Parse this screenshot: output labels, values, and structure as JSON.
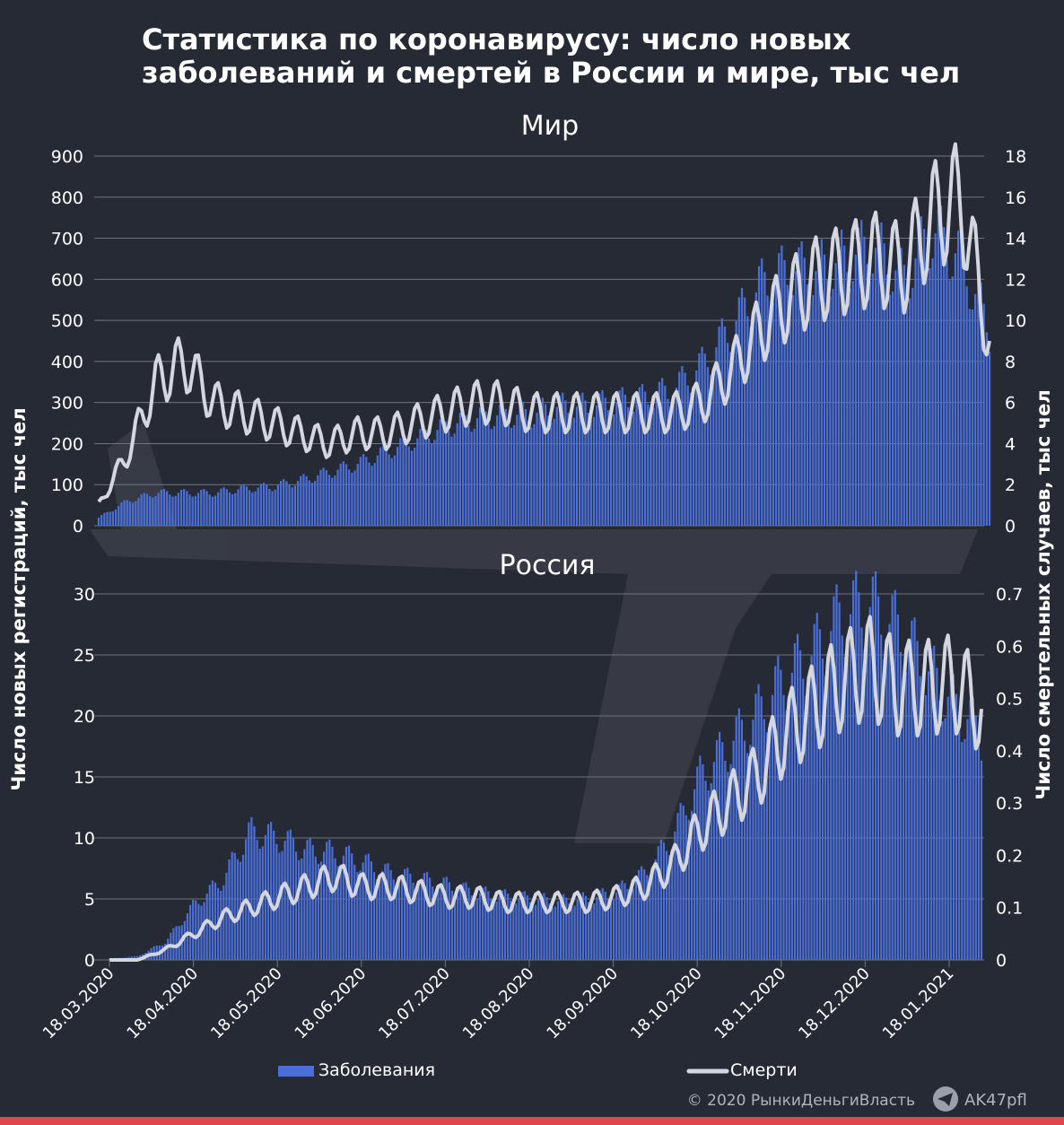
{
  "title_lines": [
    "Статистика по коронавирусу: число новых",
    "заболеваний и смертей в России и мире, тыс чел"
  ],
  "y_left_label": "Число новых регистраций, тыс чел",
  "y_right_label": "Число смертельных случаев, тыс чел",
  "legend": {
    "cases": "Заболевания",
    "deaths": "Смерти"
  },
  "credit": "© 2020  РынкиДеньгиВласть",
  "telegram_handle": "AK47pfl",
  "colors": {
    "background": "#262a35",
    "bars": "#4a6fd8",
    "line": "#d4d7e0",
    "grid": "#70747e",
    "accent_bar": "#e0454d"
  },
  "x_tick_labels": [
    "18.03.2020",
    "18.04.2020",
    "18.05.2020",
    "18.06.2020",
    "18.07.2020",
    "18.08.2020",
    "18.09.2020",
    "18.10.2020",
    "18.11.2020",
    "18.12.2020",
    "18.01.2021"
  ],
  "chart_data": [
    {
      "type": "bar+line",
      "title": "Мир",
      "x": [
        "18.03",
        "28.03",
        "07.04",
        "18.04",
        "28.04",
        "08.05",
        "18.05",
        "28.05",
        "07.06",
        "18.06",
        "28.06",
        "08.07",
        "18.07",
        "28.07",
        "07.08",
        "18.08",
        "28.08",
        "07.09",
        "18.09",
        "28.09",
        "08.10",
        "18.10",
        "28.10",
        "07.11",
        "18.11",
        "28.11",
        "08.12",
        "18.12",
        "28.12",
        "07.01",
        "18.01",
        "28.01"
      ],
      "series": [
        {
          "name": "Заболевания",
          "axis": "left",
          "values": [
            20,
            60,
            80,
            80,
            80,
            90,
            95,
            110,
            130,
            150,
            180,
            210,
            240,
            260,
            270,
            270,
            290,
            290,
            300,
            310,
            330,
            390,
            480,
            580,
            620,
            620,
            650,
            680,
            600,
            720,
            650,
            480
          ]
        },
        {
          "name": "Смерти",
          "axis": "right",
          "values": [
            1.0,
            3.5,
            7.0,
            8.0,
            6.0,
            5.5,
            5.0,
            4.5,
            4.0,
            4.5,
            4.5,
            5.0,
            5.5,
            6.0,
            6.0,
            5.5,
            5.5,
            5.5,
            5.5,
            5.5,
            5.5,
            6.0,
            7.5,
            9.5,
            11.0,
            12.0,
            12.5,
            13.0,
            12.5,
            15.0,
            16.0,
            9.0
          ]
        }
      ],
      "yticks_left": [
        0,
        100,
        200,
        300,
        400,
        500,
        600,
        700,
        800,
        900
      ],
      "yticks_right": [
        0,
        2,
        4,
        6,
        8,
        10,
        12,
        14,
        16,
        18
      ],
      "ylim_left": [
        0,
        900
      ],
      "ylim_right": [
        0,
        18
      ]
    },
    {
      "type": "bar+line",
      "title": "Россия",
      "x": [
        "18.03",
        "28.03",
        "07.04",
        "18.04",
        "28.04",
        "08.05",
        "18.05",
        "28.05",
        "07.06",
        "18.06",
        "28.06",
        "08.07",
        "18.07",
        "28.07",
        "07.08",
        "18.08",
        "28.08",
        "07.09",
        "18.09",
        "28.09",
        "08.10",
        "18.10",
        "28.10",
        "07.11",
        "18.11",
        "28.11",
        "08.12",
        "18.12",
        "28.12",
        "07.01",
        "18.01",
        "28.01"
      ],
      "series": [
        {
          "name": "Заболевания",
          "axis": "left",
          "values": [
            0.1,
            0.3,
            1.5,
            4.5,
            6.5,
            10.5,
            10.0,
            9.0,
            8.8,
            8.0,
            7.0,
            6.6,
            6.1,
            5.5,
            5.2,
            5.0,
            4.8,
            5.0,
            5.5,
            7.0,
            10.0,
            15.0,
            17.5,
            20.0,
            23.0,
            25.0,
            28.0,
            29.0,
            27.0,
            24.0,
            21.0,
            18.5
          ]
        },
        {
          "name": "Смерти",
          "axis": "left_right",
          "values": [
            0.0,
            0.0,
            0.02,
            0.05,
            0.08,
            0.1,
            0.12,
            0.14,
            0.16,
            0.14,
            0.14,
            0.13,
            0.12,
            0.12,
            0.11,
            0.11,
            0.11,
            0.11,
            0.12,
            0.14,
            0.18,
            0.25,
            0.3,
            0.35,
            0.43,
            0.48,
            0.53,
            0.56,
            0.52,
            0.52,
            0.53,
            0.48
          ]
        }
      ],
      "yticks_left": [
        0,
        5,
        10,
        15,
        20,
        25,
        30
      ],
      "yticks_right": [
        0,
        0.1,
        0.2,
        0.3,
        0.4,
        0.5,
        0.6,
        0.7
      ],
      "ylim_left": [
        0,
        30
      ],
      "ylim_right": [
        0,
        0.7
      ]
    }
  ]
}
